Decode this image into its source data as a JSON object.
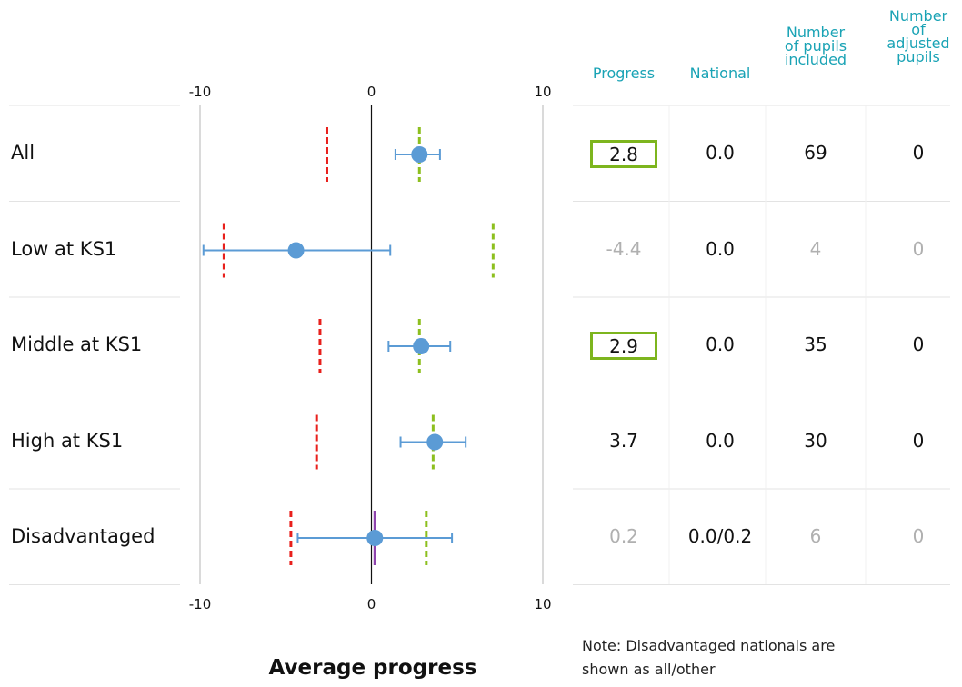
{
  "chart_data": {
    "type": "scatter",
    "xlabel": "Average progress",
    "xlim": [
      -10,
      10
    ],
    "xticks": [
      "-10",
      "0",
      "10"
    ],
    "categories": [
      "All",
      "Low at KS1",
      "Middle at KS1",
      "High at KS1",
      "Disadvantaged"
    ],
    "points": [
      {
        "category": "All",
        "value": 2.8,
        "ci_low": 1.4,
        "ci_high": 4.0,
        "red_marker": -2.6,
        "green_marker": 2.8
      },
      {
        "category": "Low at KS1",
        "value": -4.4,
        "ci_low": -9.8,
        "ci_high": 1.1,
        "red_marker": -8.6,
        "green_marker": 7.1
      },
      {
        "category": "Middle at KS1",
        "value": 2.9,
        "ci_low": 1.0,
        "ci_high": 4.6,
        "red_marker": -3.0,
        "green_marker": 2.8
      },
      {
        "category": "High at KS1",
        "value": 3.7,
        "ci_low": 1.7,
        "ci_high": 5.5,
        "red_marker": -3.2,
        "green_marker": 3.6
      },
      {
        "category": "Disadvantaged",
        "value": 0.2,
        "ci_low": -4.3,
        "ci_high": 4.7,
        "red_marker": -4.7,
        "green_marker": 3.2,
        "purple_marker": 0.2
      }
    ],
    "colors": {
      "point": "#5b9bd5",
      "red": "#e8201c",
      "green": "#8dbf1f",
      "purple": "#8e44ad"
    }
  },
  "table": {
    "headers": {
      "progress": "Progress",
      "national": "National",
      "pupils_included": [
        "Number",
        "of pupils",
        "included"
      ],
      "adjusted_pupils": [
        "Number",
        "of",
        "adjusted",
        "pupils"
      ]
    },
    "rows": [
      {
        "progress": "2.8",
        "national": "0.0",
        "included": "69",
        "adjusted": "0",
        "boxed": true,
        "dim": false
      },
      {
        "progress": "-4.4",
        "national": "0.0",
        "included": "4",
        "adjusted": "0",
        "boxed": false,
        "dim": true
      },
      {
        "progress": "2.9",
        "national": "0.0",
        "included": "35",
        "adjusted": "0",
        "boxed": true,
        "dim": false
      },
      {
        "progress": "3.7",
        "national": "0.0",
        "included": "30",
        "adjusted": "0",
        "boxed": false,
        "dim": false
      },
      {
        "progress": "0.2",
        "national": "0.0/0.2",
        "included": "6",
        "adjusted": "0",
        "boxed": false,
        "dim": true
      }
    ]
  },
  "note": "Note: Disadvantaged nationals are shown as all/other"
}
